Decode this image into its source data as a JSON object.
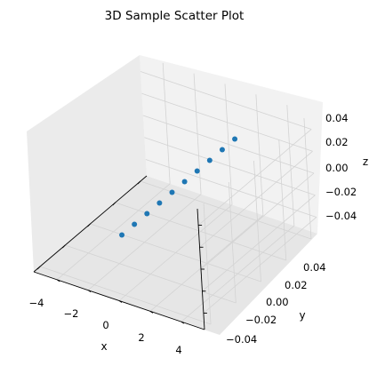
{
  "chart_data": {
    "type": "scatter",
    "title": "3D Sample Scatter Plot",
    "xlabel": "x",
    "ylabel": "y",
    "zlabel": "z",
    "xlim": [
      -4.5,
      4.5
    ],
    "ylim": [
      -0.055,
      0.055
    ],
    "zlim": [
      -0.055,
      0.055
    ],
    "xticks": [
      -4,
      -2,
      0,
      2,
      4
    ],
    "yticks": [
      -0.04,
      -0.02,
      0.0,
      0.02,
      0.04
    ],
    "zticks": [
      -0.04,
      -0.02,
      0.0,
      0.02,
      0.04
    ],
    "xtick_labels": [
      "−4",
      "−2",
      "0",
      "2",
      "4"
    ],
    "ytick_labels": [
      "−0.04",
      "−0.02",
      "0.00",
      "0.02",
      "0.04"
    ],
    "ztick_labels": [
      "−0.04",
      "−0.02",
      "0.00",
      "0.02",
      "0.04"
    ],
    "color": "#1f77b4",
    "grid": true,
    "points": [
      {
        "x": -5,
        "y": 0,
        "z": 0
      },
      {
        "x": -4,
        "y": 0,
        "z": 0
      },
      {
        "x": -3,
        "y": 0,
        "z": 0
      },
      {
        "x": -2,
        "y": 0,
        "z": 0
      },
      {
        "x": -1,
        "y": 0,
        "z": 0
      },
      {
        "x": 0,
        "y": 0,
        "z": 0
      },
      {
        "x": 1,
        "y": 0,
        "z": 0
      },
      {
        "x": 2,
        "y": 0,
        "z": 0
      },
      {
        "x": 3,
        "y": 0,
        "z": 0
      },
      {
        "x": 4,
        "y": 0,
        "z": 0
      }
    ]
  }
}
